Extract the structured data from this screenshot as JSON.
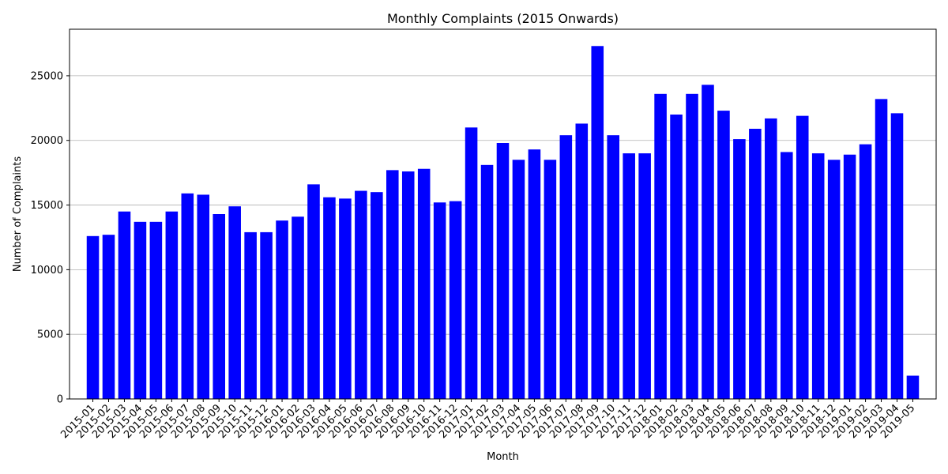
{
  "chart_data": {
    "type": "bar",
    "title": "Monthly Complaints (2015 Onwards)",
    "xlabel": "Month",
    "ylabel": "Number of Complaints",
    "ylim": [
      0,
      28600
    ],
    "yticks": [
      0,
      5000,
      10000,
      15000,
      20000,
      25000
    ],
    "grid": "y",
    "bar_color": "#0000ff",
    "categories": [
      "2015-01",
      "2015-02",
      "2015-03",
      "2015-04",
      "2015-05",
      "2015-06",
      "2015-07",
      "2015-08",
      "2015-09",
      "2015-10",
      "2015-11",
      "2015-12",
      "2016-01",
      "2016-02",
      "2016-03",
      "2016-04",
      "2016-05",
      "2016-06",
      "2016-07",
      "2016-08",
      "2016-09",
      "2016-10",
      "2016-11",
      "2016-12",
      "2017-01",
      "2017-02",
      "2017-03",
      "2017-04",
      "2017-05",
      "2017-06",
      "2017-07",
      "2017-08",
      "2017-09",
      "2017-10",
      "2017-11",
      "2017-12",
      "2018-01",
      "2018-02",
      "2018-03",
      "2018-04",
      "2018-05",
      "2018-06",
      "2018-07",
      "2018-08",
      "2018-09",
      "2018-10",
      "2018-11",
      "2018-12",
      "2019-01",
      "2019-02",
      "2019-03",
      "2019-04",
      "2019-05"
    ],
    "values": [
      12600,
      12700,
      14500,
      13700,
      13700,
      14500,
      15900,
      15800,
      14300,
      14900,
      12900,
      12900,
      13800,
      14100,
      16600,
      15600,
      15500,
      16100,
      16000,
      17700,
      17600,
      17800,
      15200,
      15300,
      21000,
      18100,
      19800,
      18500,
      19300,
      18500,
      20400,
      21300,
      27300,
      20400,
      19000,
      19000,
      23600,
      22000,
      23600,
      24300,
      22300,
      20100,
      20900,
      21700,
      19100,
      21900,
      19000,
      18500,
      18900,
      19700,
      23200,
      22100,
      1800
    ]
  }
}
